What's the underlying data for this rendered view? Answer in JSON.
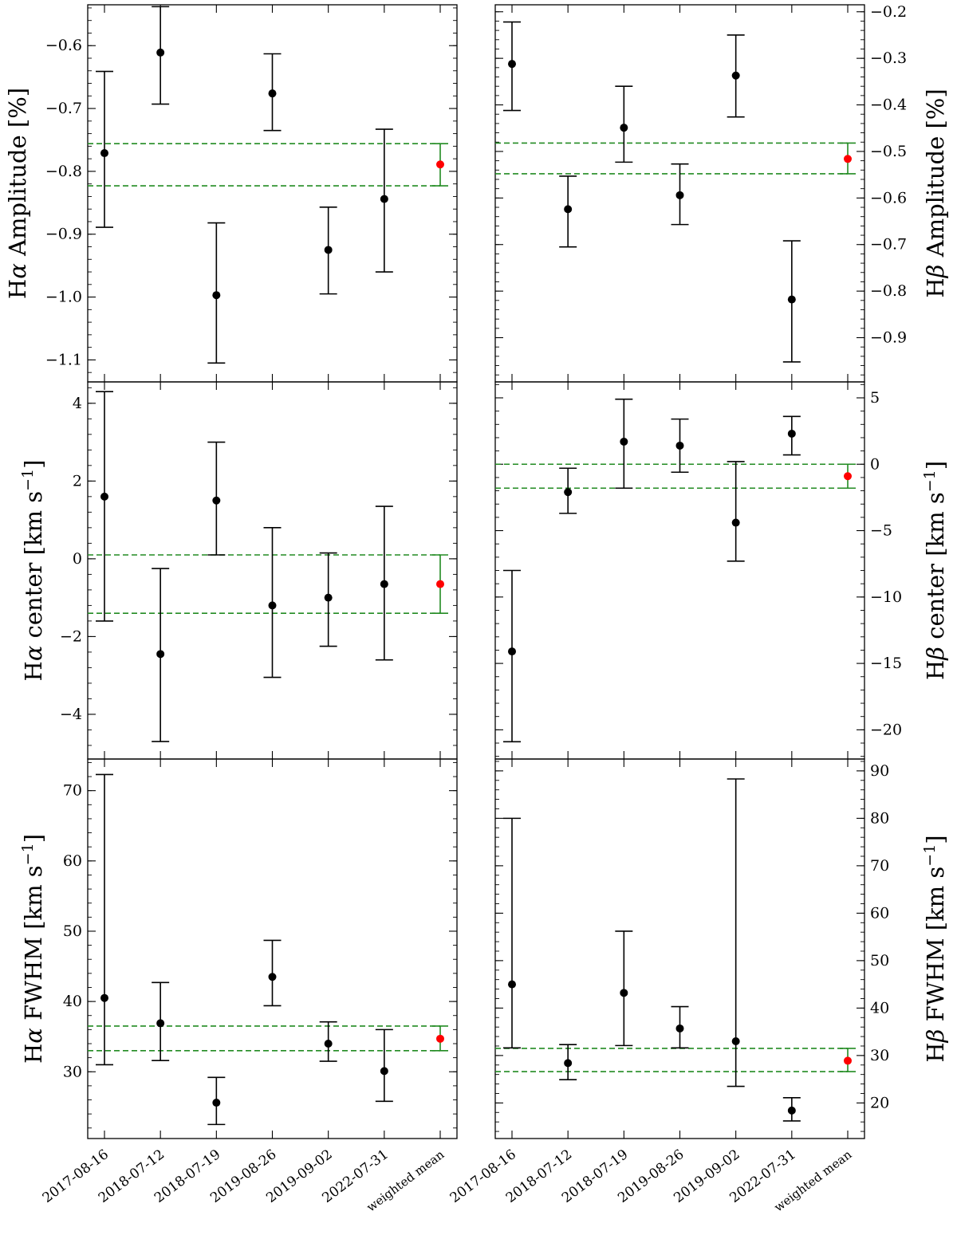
{
  "chart_data": [
    {
      "type": "scatter",
      "panel": "top-left",
      "ylabel_prefix": "H",
      "ylabel_greek": "α",
      "ylabel_suffix": " Amplitude [%]",
      "ylim": [
        -1.135,
        -0.535
      ],
      "yticks": [
        -1.1,
        -1.0,
        -0.9,
        -0.8,
        -0.7,
        -0.6
      ],
      "ytick_labels": [
        "−1.1",
        "−1.0",
        "−0.9",
        "−0.8",
        "−0.7",
        "−0.6"
      ],
      "minor_step": 0.02,
      "axis_side": "left",
      "categories": [
        "2017-08-16",
        "2018-07-12",
        "2018-07-19",
        "2019-08-26",
        "2019-09-02",
        "2022-07-31",
        "weighted mean"
      ],
      "points": [
        {
          "y": -0.771,
          "lo": -0.889,
          "hi": -0.641
        },
        {
          "y": -0.611,
          "lo": -0.693,
          "hi": -0.538
        },
        {
          "y": -0.997,
          "lo": -1.105,
          "hi": -0.882
        },
        {
          "y": -0.676,
          "lo": -0.735,
          "hi": -0.613
        },
        {
          "y": -0.925,
          "lo": -0.995,
          "hi": -0.857
        },
        {
          "y": -0.844,
          "lo": -0.96,
          "hi": -0.733
        }
      ],
      "mean": {
        "y": -0.789,
        "lo": -0.823,
        "hi": -0.756
      }
    },
    {
      "type": "scatter",
      "panel": "top-right",
      "ylabel_prefix": "H",
      "ylabel_greek": "β",
      "ylabel_suffix": " Amplitude [%]",
      "ylim": [
        -0.995,
        -0.185
      ],
      "yticks": [
        -0.9,
        -0.8,
        -0.7,
        -0.6,
        -0.5,
        -0.4,
        -0.3,
        -0.2
      ],
      "ytick_labels": [
        "−0.9",
        "−0.8",
        "−0.7",
        "−0.6",
        "−0.5",
        "−0.4",
        "−0.3",
        "−0.2"
      ],
      "minor_step": 0.02,
      "axis_side": "right",
      "categories": [
        "2017-08-16",
        "2018-07-12",
        "2018-07-19",
        "2019-08-26",
        "2019-09-02",
        "2022-07-31",
        "weighted mean"
      ],
      "points": [
        {
          "y": -0.312,
          "lo": -0.412,
          "hi": -0.222
        },
        {
          "y": -0.624,
          "lo": -0.705,
          "hi": -0.553
        },
        {
          "y": -0.449,
          "lo": -0.523,
          "hi": -0.36
        },
        {
          "y": -0.594,
          "lo": -0.657,
          "hi": -0.527
        },
        {
          "y": -0.337,
          "lo": -0.426,
          "hi": -0.25
        },
        {
          "y": -0.818,
          "lo": -0.952,
          "hi": -0.692
        }
      ],
      "mean": {
        "y": -0.516,
        "lo": -0.548,
        "hi": -0.482
      }
    },
    {
      "type": "scatter",
      "panel": "middle-left",
      "ylabel_prefix": "H",
      "ylabel_greek": "α",
      "ylabel_suffix": " center [km s",
      "ylabel_sup": "−1",
      "ylabel_end": "]",
      "ylim": [
        -5.15,
        4.55
      ],
      "yticks": [
        -4,
        -2,
        0,
        2,
        4
      ],
      "ytick_labels": [
        "−4",
        "−2",
        "0",
        "2",
        "4"
      ],
      "minor_step": 0.4,
      "axis_side": "left",
      "categories": [
        "2017-08-16",
        "2018-07-12",
        "2018-07-19",
        "2019-08-26",
        "2019-09-02",
        "2022-07-31",
        "weighted mean"
      ],
      "points": [
        {
          "y": 1.6,
          "lo": -1.6,
          "hi": 4.3
        },
        {
          "y": -2.45,
          "lo": -4.7,
          "hi": -0.25
        },
        {
          "y": 1.5,
          "lo": 0.1,
          "hi": 3.0
        },
        {
          "y": -1.2,
          "lo": -3.05,
          "hi": 0.8
        },
        {
          "y": -1.0,
          "lo": -2.25,
          "hi": 0.15
        },
        {
          "y": -0.65,
          "lo": -2.6,
          "hi": 1.35
        }
      ],
      "mean": {
        "y": -0.65,
        "lo": -1.4,
        "hi": 0.1
      }
    },
    {
      "type": "scatter",
      "panel": "middle-right",
      "ylabel_prefix": "H",
      "ylabel_greek": "β",
      "ylabel_suffix": " center [km s",
      "ylabel_sup": "−1",
      "ylabel_end": "]",
      "ylim": [
        -22.2,
        6.2
      ],
      "yticks": [
        -20,
        -15,
        -10,
        -5,
        0,
        5
      ],
      "ytick_labels": [
        "−20",
        "−15",
        "−10",
        "−5",
        "0",
        "5"
      ],
      "minor_step": 1,
      "axis_side": "right",
      "categories": [
        "2017-08-16",
        "2018-07-12",
        "2018-07-19",
        "2019-08-26",
        "2019-09-02",
        "2022-07-31",
        "weighted mean"
      ],
      "points": [
        {
          "y": -14.1,
          "lo": -20.9,
          "hi": -8.0
        },
        {
          "y": -2.1,
          "lo": -3.7,
          "hi": -0.3
        },
        {
          "y": 1.7,
          "lo": -1.8,
          "hi": 4.9
        },
        {
          "y": 1.4,
          "lo": -0.6,
          "hi": 3.4
        },
        {
          "y": -4.4,
          "lo": -7.3,
          "hi": 0.2
        },
        {
          "y": 2.3,
          "lo": 0.7,
          "hi": 3.6
        }
      ],
      "mean": {
        "y": -0.9,
        "lo": -1.8,
        "hi": 0.0
      }
    },
    {
      "type": "scatter",
      "panel": "bottom-left",
      "ylabel_prefix": "H",
      "ylabel_greek": "α",
      "ylabel_suffix": " FWHM [km s",
      "ylabel_sup": "−1",
      "ylabel_end": "]",
      "ylim": [
        20.5,
        74.5
      ],
      "yticks": [
        30,
        40,
        50,
        60,
        70
      ],
      "ytick_labels": [
        "30",
        "40",
        "50",
        "60",
        "70"
      ],
      "minor_step": 2,
      "axis_side": "left",
      "categories": [
        "2017-08-16",
        "2018-07-12",
        "2018-07-19",
        "2019-08-26",
        "2019-09-02",
        "2022-07-31",
        "weighted mean"
      ],
      "points": [
        {
          "y": 40.5,
          "lo": 31.0,
          "hi": 72.3
        },
        {
          "y": 36.9,
          "lo": 31.6,
          "hi": 42.7
        },
        {
          "y": 25.6,
          "lo": 22.5,
          "hi": 29.2
        },
        {
          "y": 43.5,
          "lo": 39.4,
          "hi": 48.7
        },
        {
          "y": 34.0,
          "lo": 31.5,
          "hi": 37.1
        },
        {
          "y": 30.1,
          "lo": 25.8,
          "hi": 36.0
        }
      ],
      "mean": {
        "y": 34.7,
        "lo": 33.0,
        "hi": 36.5
      }
    },
    {
      "type": "scatter",
      "panel": "bottom-right",
      "ylabel_prefix": "H",
      "ylabel_greek": "β",
      "ylabel_suffix": " FWHM [km s",
      "ylabel_sup": "−1",
      "ylabel_end": "]",
      "ylim": [
        12.5,
        92.5
      ],
      "yticks": [
        20,
        30,
        40,
        50,
        60,
        70,
        80,
        90
      ],
      "ytick_labels": [
        "20",
        "30",
        "40",
        "50",
        "60",
        "70",
        "80",
        "90"
      ],
      "minor_step": 2,
      "axis_side": "right",
      "categories": [
        "2017-08-16",
        "2018-07-12",
        "2018-07-19",
        "2019-08-26",
        "2019-09-02",
        "2022-07-31",
        "weighted mean"
      ],
      "points": [
        {
          "y": 45.0,
          "lo": 31.6,
          "hi": 80.0
        },
        {
          "y": 28.4,
          "lo": 24.9,
          "hi": 32.3
        },
        {
          "y": 43.2,
          "lo": 32.1,
          "hi": 56.2
        },
        {
          "y": 35.7,
          "lo": 31.6,
          "hi": 40.3
        },
        {
          "y": 33.0,
          "lo": 23.5,
          "hi": 88.3
        },
        {
          "y": 18.4,
          "lo": 16.2,
          "hi": 21.1
        }
      ],
      "mean": {
        "y": 28.9,
        "lo": 26.6,
        "hi": 31.5
      }
    }
  ],
  "colors": {
    "points": "#000000",
    "mean_point": "#ff0000",
    "mean_band": "#228b22"
  }
}
